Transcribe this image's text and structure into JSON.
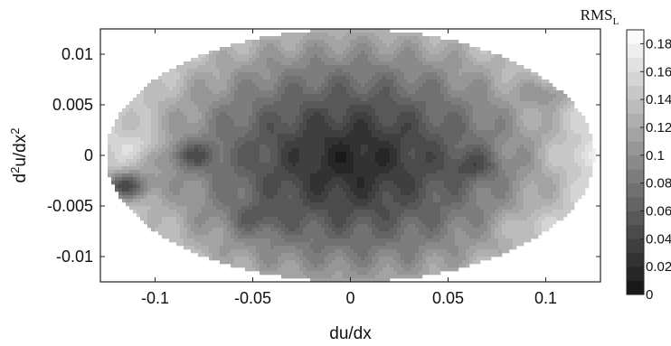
{
  "chart_data": {
    "type": "heatmap",
    "xlabel": "du/dx",
    "ylabel_base": "d",
    "ylabel_sup1": "2",
    "ylabel_mid": "u/dx",
    "ylabel_sup2": "2",
    "xlim": [
      -0.128,
      0.128
    ],
    "ylim": [
      -0.0125,
      0.0125
    ],
    "xticks": [
      -0.1,
      -0.05,
      0,
      0.05,
      0.1
    ],
    "xtick_labels": [
      "-0.1",
      "-0.05",
      "0",
      "0.05",
      "0.1"
    ],
    "yticks": [
      0.01,
      0.005,
      0,
      -0.005,
      -0.01
    ],
    "ytick_labels": [
      "0.01",
      "0.005",
      "0",
      "-0.005",
      "-0.01"
    ],
    "domain": {
      "shape": "ellipse",
      "x_semi_axis": 0.125,
      "y_semi_axis": 0.0125,
      "center": [
        0,
        0
      ]
    },
    "colorbar": {
      "title_main": "RMS",
      "title_sub": "L",
      "range": [
        0,
        0.19
      ],
      "ticks": [
        0,
        0.02,
        0.04,
        0.06,
        0.08,
        0.1,
        0.12,
        0.14,
        0.16,
        0.18
      ],
      "tick_labels": [
        "0",
        "0.02",
        "0.04",
        "0.06",
        "0.08",
        "0.1",
        "0.12",
        "0.14",
        "0.16",
        "0.18"
      ],
      "colormap": "gray"
    },
    "minimum": {
      "x": 0.0,
      "y": -0.0005,
      "value": 0.01
    },
    "features": [
      {
        "x": -0.11,
        "y": 0.001,
        "value": 0.16
      },
      {
        "x": -0.08,
        "y": 0.0,
        "value": 0.05
      },
      {
        "x": -0.115,
        "y": -0.003,
        "value": 0.05
      },
      {
        "x": 0.06,
        "y": -0.001,
        "value": 0.04
      },
      {
        "x": 0.1,
        "y": 0.006,
        "value": 0.1
      },
      {
        "x": 0.12,
        "y": 0.0,
        "value": 0.17
      },
      {
        "x": 0.095,
        "y": -0.007,
        "value": 0.15
      },
      {
        "x": -0.045,
        "y": -0.006,
        "value": 0.05
      }
    ]
  }
}
